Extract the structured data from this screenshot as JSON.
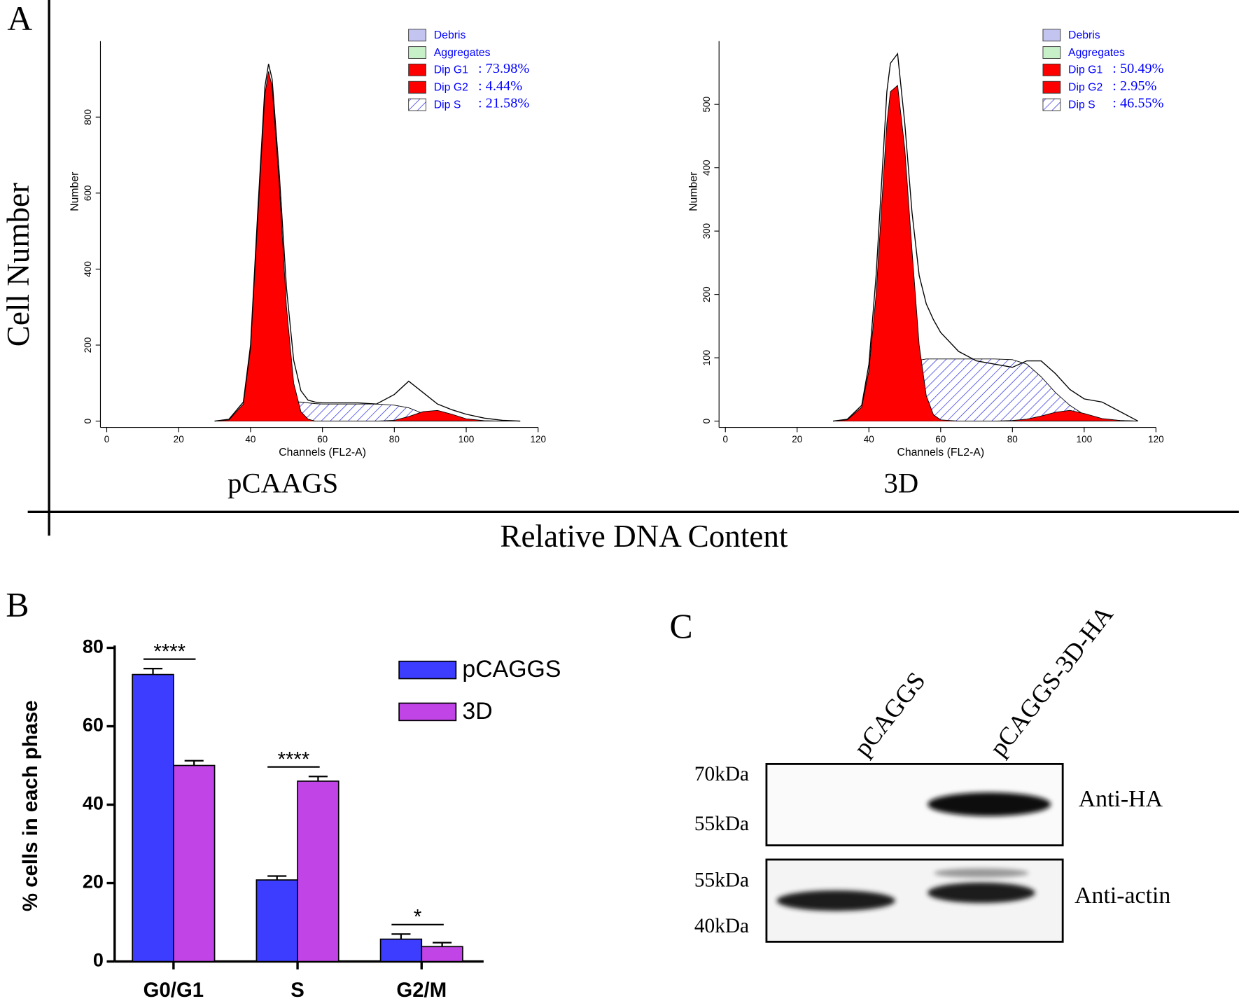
{
  "figure": {
    "panel_labels": [
      "A",
      "B",
      "C"
    ],
    "y_label": "Cell Number",
    "x_label": "Relative DNA Content"
  },
  "chart_data": [
    {
      "type": "area",
      "caption": "pCAAGS",
      "x_label": "Channels (FL2-A)",
      "y_label": "Number",
      "xlim": [
        0,
        120
      ],
      "xticks": [
        0,
        20,
        40,
        60,
        80,
        100,
        120
      ],
      "ylim": [
        0,
        1000
      ],
      "yticks": [
        0,
        200,
        400,
        600,
        800
      ],
      "legend": [
        {
          "name": "Debris",
          "color": "#c4c4f0",
          "fill": "solid"
        },
        {
          "name": "Aggregates",
          "color": "#c8f0c8",
          "fill": "solid"
        },
        {
          "name": "Dip G1",
          "color": "#ff0000",
          "fill": "solid",
          "value": 73.98,
          "value_label": ": 73.98%"
        },
        {
          "name": "Dip G2",
          "color": "#ff0000",
          "fill": "solid",
          "value": 4.44,
          "value_label": ": 4.44%"
        },
        {
          "name": "Dip S",
          "color": "#2020e0",
          "fill": "hatch",
          "value": 21.58,
          "value_label": ": 21.58%"
        }
      ],
      "x": [
        30,
        34,
        38,
        40,
        42,
        44,
        45,
        46,
        48,
        50,
        52,
        54,
        56,
        58,
        60,
        65,
        70,
        75,
        80,
        84,
        88,
        92,
        96,
        100,
        105,
        110,
        115
      ],
      "series": [
        {
          "color": "#2020e0",
          "fill": "hatch",
          "values": [
            0,
            0,
            0,
            0,
            5,
            12,
            18,
            25,
            40,
            48,
            50,
            50,
            48,
            46,
            45,
            45,
            45,
            45,
            42,
            35,
            20,
            8,
            2,
            0,
            0,
            0,
            0
          ]
        },
        {
          "color": "#ff0000",
          "fill": "solid",
          "values": [
            0,
            0,
            0,
            0,
            0,
            0,
            0,
            0,
            0,
            0,
            0,
            0,
            0,
            0,
            0,
            0,
            0,
            0,
            2,
            12,
            25,
            28,
            18,
            6,
            1,
            0,
            0
          ]
        },
        {
          "color": "#ff0000",
          "fill": "solid",
          "values": [
            0,
            3,
            45,
            190,
            530,
            860,
            920,
            880,
            620,
            300,
            100,
            25,
            5,
            0,
            0,
            0,
            0,
            0,
            0,
            0,
            0,
            0,
            0,
            0,
            0,
            0,
            0
          ]
        },
        {
          "color": "#000000",
          "fill": "none",
          "values": [
            0,
            5,
            50,
            200,
            550,
            880,
            940,
            900,
            650,
            350,
            160,
            80,
            55,
            50,
            48,
            48,
            48,
            45,
            70,
            105,
            75,
            45,
            30,
            18,
            8,
            2,
            0
          ]
        }
      ]
    },
    {
      "type": "area",
      "caption": "3D",
      "x_label": "Channels (FL2-A)",
      "y_label": "Number",
      "xlim": [
        0,
        120
      ],
      "xticks": [
        0,
        20,
        40,
        60,
        80,
        100,
        120
      ],
      "ylim": [
        0,
        600
      ],
      "yticks": [
        0,
        100,
        200,
        300,
        400,
        500
      ],
      "legend": [
        {
          "name": "Debris",
          "color": "#c4c4f0",
          "fill": "solid"
        },
        {
          "name": "Aggregates",
          "color": "#c8f0c8",
          "fill": "solid"
        },
        {
          "name": "Dip G1",
          "color": "#ff0000",
          "fill": "solid",
          "value": 50.49,
          "value_label": ": 50.49%"
        },
        {
          "name": "Dip G2",
          "color": "#ff0000",
          "fill": "solid",
          "value": 2.95,
          "value_label": ": 2.95%"
        },
        {
          "name": "Dip S",
          "color": "#2020e0",
          "fill": "hatch",
          "value": 46.55,
          "value_label": ": 46.55%"
        }
      ],
      "x": [
        30,
        34,
        38,
        40,
        42,
        44,
        45,
        46,
        48,
        50,
        52,
        54,
        56,
        58,
        60,
        65,
        70,
        75,
        80,
        84,
        88,
        92,
        96,
        100,
        105,
        110,
        115
      ],
      "series": [
        {
          "color": "#2020e0",
          "fill": "hatch",
          "values": [
            0,
            0,
            0,
            0,
            5,
            15,
            22,
            30,
            50,
            70,
            88,
            96,
            98,
            98,
            98,
            98,
            98,
            98,
            97,
            90,
            70,
            45,
            25,
            10,
            3,
            1,
            0
          ]
        },
        {
          "color": "#ff0000",
          "fill": "solid",
          "values": [
            0,
            0,
            0,
            0,
            0,
            0,
            0,
            0,
            0,
            0,
            0,
            0,
            0,
            0,
            0,
            0,
            0,
            0,
            1,
            3,
            8,
            14,
            17,
            12,
            4,
            1,
            0
          ]
        },
        {
          "color": "#ff0000",
          "fill": "solid",
          "values": [
            0,
            2,
            22,
            80,
            200,
            380,
            470,
            520,
            530,
            430,
            270,
            120,
            40,
            10,
            2,
            0,
            0,
            0,
            0,
            0,
            0,
            0,
            0,
            0,
            0,
            0,
            0
          ]
        },
        {
          "color": "#000000",
          "fill": "none",
          "values": [
            0,
            3,
            25,
            90,
            230,
            420,
            520,
            565,
            580,
            470,
            330,
            230,
            185,
            160,
            140,
            110,
            95,
            90,
            85,
            95,
            95,
            75,
            50,
            35,
            30,
            15,
            0
          ]
        }
      ]
    },
    {
      "type": "bar",
      "y_label": "% cells in each phase",
      "categories": [
        "G0/G1",
        "S",
        "G2/M"
      ],
      "ylim": [
        0,
        80
      ],
      "yticks": [
        0,
        20,
        40,
        60,
        80
      ],
      "series": [
        {
          "name": "pCAGGS",
          "color": "#3d3dff",
          "values": [
            73.2,
            20.8,
            5.7
          ],
          "errors": [
            1.5,
            1.0,
            1.3
          ]
        },
        {
          "name": "3D",
          "color": "#c044e6",
          "values": [
            50.0,
            46.0,
            3.8
          ],
          "errors": [
            1.2,
            1.2,
            1.0
          ]
        }
      ],
      "significance": [
        "****",
        "****",
        "*"
      ]
    }
  ],
  "blot": {
    "lanes": [
      "pCAGGS",
      "pCAGGS-3D-HA"
    ],
    "panels": [
      {
        "antibody": "Anti-HA",
        "markers": [
          "70kDa",
          "55kDa"
        ]
      },
      {
        "antibody": "Anti-actin",
        "markers": [
          "55kDa",
          "40kDa"
        ]
      }
    ]
  }
}
